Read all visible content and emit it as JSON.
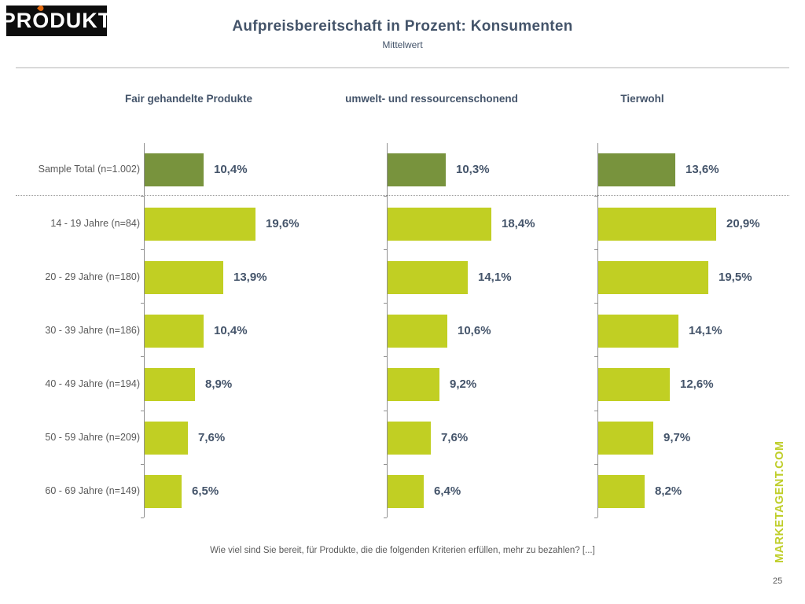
{
  "logo": {
    "text_pre": "PR",
    "text_o": "O",
    "text_post": "DUKT"
  },
  "header": {
    "title": "Aufpreisbereitschaft in Prozent: Konsumenten",
    "subtitle": "Mittelwert"
  },
  "chart_data": {
    "type": "bar",
    "orientation": "horizontal",
    "title": "Aufpreisbereitschaft in Prozent: Konsumenten",
    "subtitle": "Mittelwert",
    "categories": [
      "Sample Total (n=1.002)",
      "14 - 19 Jahre (n=84)",
      "20 - 29 Jahre (n=180)",
      "30 - 39 Jahre (n=186)",
      "40 - 49 Jahre (n=194)",
      "50 - 59 Jahre (n=209)",
      "60 - 69 Jahre (n=149)"
    ],
    "series": [
      {
        "name": "Fair gehandelte Produkte",
        "values": [
          10.4,
          19.6,
          13.9,
          10.4,
          8.9,
          7.6,
          6.5
        ]
      },
      {
        "name": "umwelt- und ressourcenschonend",
        "values": [
          10.3,
          18.4,
          14.1,
          10.6,
          9.2,
          7.6,
          6.4
        ]
      },
      {
        "name": "Tierwohl",
        "values": [
          13.6,
          20.9,
          19.5,
          14.1,
          12.6,
          9.7,
          8.2
        ]
      }
    ],
    "value_format": "comma_decimal_percent",
    "xlim": [
      0,
      22
    ],
    "grid": false,
    "legend": "none",
    "colors": {
      "total_bar": "#78933D",
      "age_bar": "#C1CF23"
    }
  },
  "footer": {
    "question": "Wie viel sind Sie bereit, für Produkte, die die folgenden Kriterien erfüllen, mehr zu bezahlen? [...]",
    "brand_vertical": "MARKETAGENT.COM",
    "page_number": "25"
  }
}
